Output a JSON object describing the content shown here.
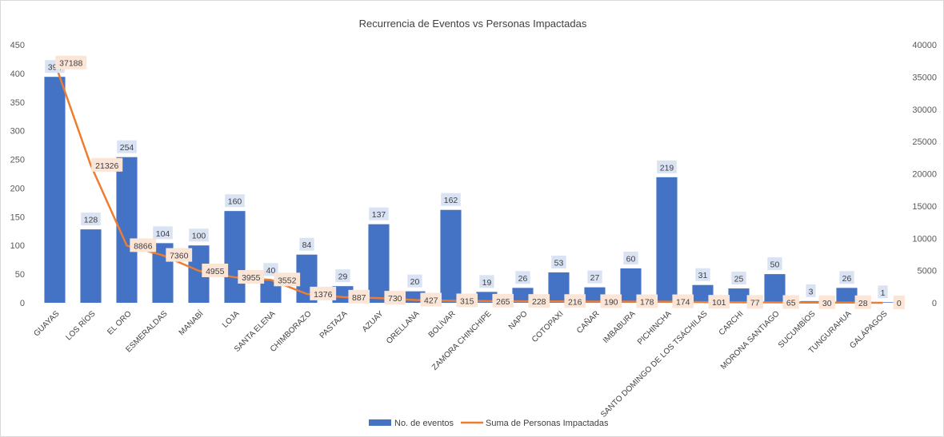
{
  "chart_data": {
    "type": "bar",
    "title": "Recurrencia de Eventos vs Personas Impactadas",
    "categories": [
      "GUAYAS",
      "LOS RÍOS",
      "EL ORO",
      "ESMERALDAS",
      "MANABÍ",
      "LOJA",
      "SANTA ELENA",
      "CHIMBORAZO",
      "PASTAZA",
      "AZUAY",
      "ORELLANA",
      "BOLÍVAR",
      "ZAMORA CHINCHIPE",
      "NAPO",
      "COTOPAXI",
      "CAÑAR",
      "IMBABURA",
      "PICHINCHA",
      "SANTO DOMINGO DE LOS TSÁCHILAS",
      "CARCHI",
      "MORONA SANTIAGO",
      "SUCUMBÍOS",
      "TUNGURAHUA",
      "GALÁPAGOS"
    ],
    "series": [
      {
        "name": "No. de eventos",
        "type": "bar",
        "axis": "left",
        "color": "#4472C4",
        "values": [
          394,
          128,
          254,
          104,
          100,
          160,
          40,
          84,
          29,
          137,
          20,
          162,
          19,
          26,
          53,
          27,
          60,
          219,
          31,
          25,
          50,
          3,
          26,
          1
        ]
      },
      {
        "name": "Suma de Personas Impactadas",
        "type": "line",
        "axis": "right",
        "color": "#ED7D31",
        "values": [
          37188,
          21326,
          8866,
          7360,
          4955,
          3955,
          3552,
          1376,
          887,
          730,
          427,
          315,
          265,
          228,
          216,
          190,
          178,
          174,
          101,
          77,
          65,
          30,
          28,
          0
        ]
      }
    ],
    "ylim_left": [
      0,
      450
    ],
    "yticks_left": [
      0,
      50,
      100,
      150,
      200,
      250,
      300,
      350,
      400,
      450
    ],
    "ylim_right": [
      0,
      40000
    ],
    "yticks_right": [
      0,
      5000,
      10000,
      15000,
      20000,
      25000,
      30000,
      35000,
      40000
    ],
    "grid": false,
    "legend_position": "bottom"
  }
}
